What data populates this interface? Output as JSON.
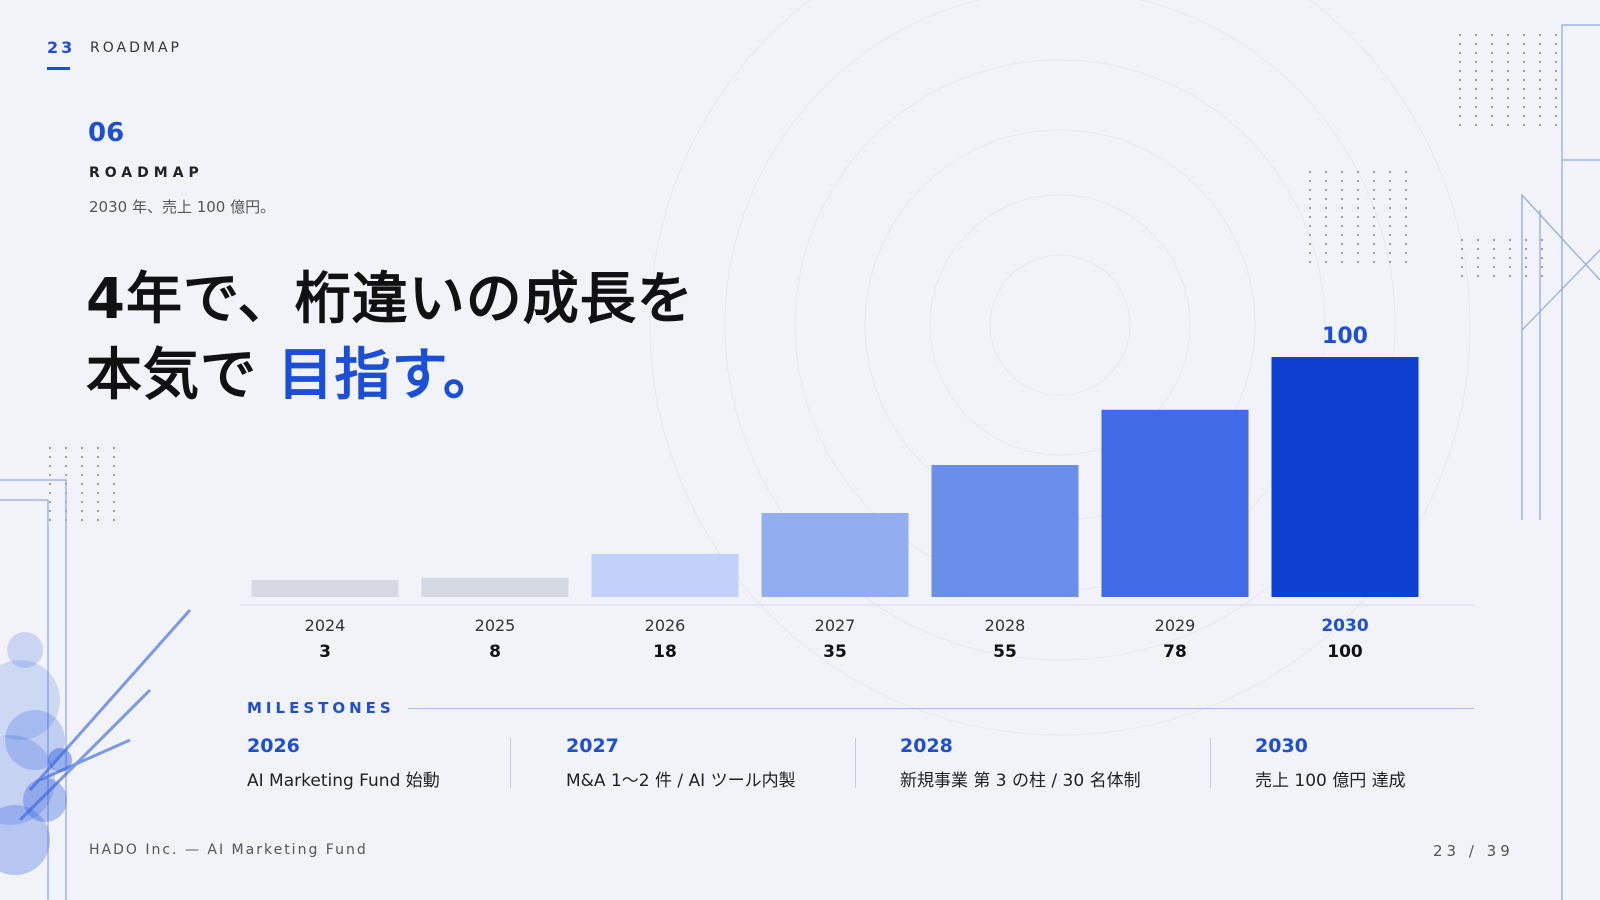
{
  "header": {
    "slide_num": "23",
    "section": "ROADMAP"
  },
  "section": {
    "number": "06",
    "label": "ROADMAP",
    "subtitle": "2030 年、売上 100 億円。"
  },
  "headline": {
    "line1": "4年で、桁違いの成長を",
    "line2_prefix": "本気で ",
    "line2_accent": "目指す。"
  },
  "chart_data": {
    "type": "bar",
    "categories": [
      "2024",
      "2025",
      "2026",
      "2027",
      "2028",
      "2029",
      "2030"
    ],
    "values": [
      3,
      8,
      18,
      35,
      55,
      78,
      100
    ],
    "value_labels": [
      "3",
      "8",
      "18",
      "35",
      "55",
      "78",
      "100"
    ],
    "highlight_label": "100",
    "ylim": [
      0,
      100
    ],
    "colors": [
      "#d6d9e3",
      "#d4d8e3",
      "#c2d1f8",
      "#93adf1",
      "#6a8ee9",
      "#3f6be6",
      "#0f3fd0"
    ],
    "highlight_color": "#1d4fd6",
    "grid": false,
    "legend": "none"
  },
  "milestones": {
    "title": "MILESTONES",
    "items": [
      {
        "year": "2026",
        "text": "AI Marketing Fund 始動"
      },
      {
        "year": "2027",
        "text": "M&A 1〜2 件 / AI ツール内製"
      },
      {
        "year": "2028",
        "text": "新規事業 第 3 の柱 / 30 名体制"
      },
      {
        "year": "2030",
        "text": "売上 100 億円 達成"
      }
    ]
  },
  "footer": {
    "company": "HADO Inc.  —  AI Marketing Fund",
    "page": "23 / 39"
  }
}
